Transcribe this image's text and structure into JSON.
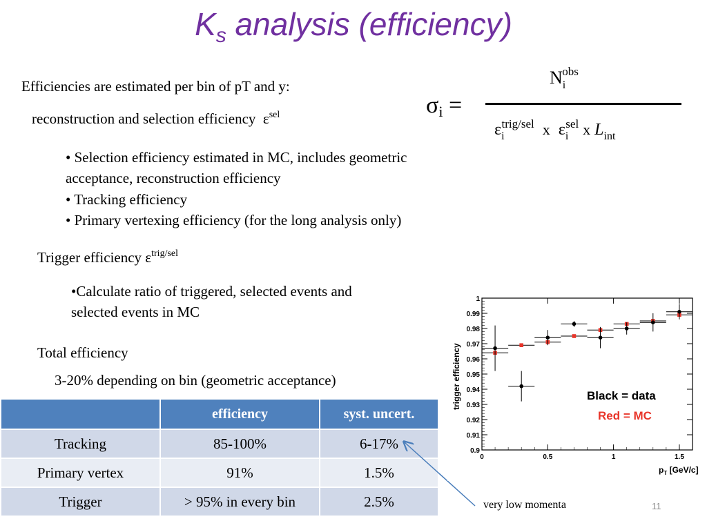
{
  "slide": {
    "title_main": "K",
    "title_sub": "s",
    "title_rest": " analysis (efficiency)",
    "page_number": "11"
  },
  "text": {
    "intro": "Efficiencies are estimated per bin of pT and y:",
    "reco_label": "reconstruction and selection efficiency",
    "reco_symbol": "ε",
    "reco_sup": "sel",
    "bullets_reco": [
      "• Selection efficiency estimated in MC, includes geometric",
      "acceptance, reconstruction efficiency",
      "• Tracking efficiency",
      "• Primary vertexing efficiency (for the long analysis only)"
    ],
    "trigger_label": "Trigger efficiency",
    "trigger_symbol": "ε",
    "trigger_sup": "trig/sel",
    "bullets_trigger": [
      "•Calculate ratio of triggered, selected events and",
      "selected events in MC"
    ],
    "total_label": "Total efficiency",
    "total_detail": "3-20% depending on bin (geometric acceptance)",
    "annotation": "very low momenta"
  },
  "formula": {
    "lhs": "σ",
    "lhs_sub": "i",
    "equals": "=",
    "num": "N",
    "num_sub": "i",
    "num_sup": "obs",
    "eps1": "ε",
    "eps1_sub": "i",
    "eps1_sup": "trig/sel",
    "times1": "x",
    "eps2": "ε",
    "eps2_sub": "i",
    "eps2_sup": "sel",
    "times2": "x",
    "lum": "L",
    "lum_sub": "int"
  },
  "table": {
    "headers": [
      "",
      "efficiency",
      "syst. uncert."
    ],
    "rows": [
      [
        "Tracking",
        "85-100%",
        "6-17%"
      ],
      [
        "Primary vertex",
        "91%",
        "1.5%"
      ],
      [
        "Trigger",
        "> 95% in every bin",
        "2.5%"
      ]
    ]
  },
  "chart_data": {
    "type": "scatter",
    "title": "",
    "xlabel": "p_T [GeV/c]",
    "ylabel": "trigger efficiency",
    "xlim": [
      0,
      1.6
    ],
    "ylim": [
      0.9,
      1.0
    ],
    "x_ticks": [
      "0",
      "0.5",
      "1",
      "1.5"
    ],
    "y_ticks": [
      "0.9",
      "0.91",
      "0.92",
      "0.93",
      "0.94",
      "0.95",
      "0.96",
      "0.97",
      "0.98",
      "0.99",
      "1"
    ],
    "legend": [
      "Black = data",
      "Red = MC"
    ],
    "series": [
      {
        "name": "Black = data",
        "color": "#000000",
        "points": [
          {
            "x": 0.1,
            "y": 0.967,
            "ylo": 0.952,
            "yhi": 0.982,
            "xerr": 0.1
          },
          {
            "x": 0.3,
            "y": 0.942,
            "ylo": 0.932,
            "yhi": 0.952,
            "xerr": 0.1
          },
          {
            "x": 0.5,
            "y": 0.974,
            "ylo": 0.969,
            "yhi": 0.979,
            "xerr": 0.1
          },
          {
            "x": 0.7,
            "y": 0.983,
            "ylo": 0.981,
            "yhi": 0.985,
            "xerr": 0.1
          },
          {
            "x": 0.9,
            "y": 0.974,
            "ylo": 0.967,
            "yhi": 0.981,
            "xerr": 0.1
          },
          {
            "x": 1.1,
            "y": 0.98,
            "ylo": 0.976,
            "yhi": 0.984,
            "xerr": 0.1
          },
          {
            "x": 1.3,
            "y": 0.984,
            "ylo": 0.978,
            "yhi": 0.99,
            "xerr": 0.1
          },
          {
            "x": 1.5,
            "y": 0.991,
            "ylo": 0.986,
            "yhi": 0.996,
            "xerr": 0.1
          }
        ]
      },
      {
        "name": "Red = MC",
        "color": "#e8352a",
        "points": [
          {
            "x": 0.1,
            "y": 0.964,
            "xerr": 0.1
          },
          {
            "x": 0.3,
            "y": 0.969,
            "xerr": 0.1
          },
          {
            "x": 0.5,
            "y": 0.971,
            "xerr": 0.1
          },
          {
            "x": 0.7,
            "y": 0.975,
            "xerr": 0.1
          },
          {
            "x": 0.9,
            "y": 0.979,
            "xerr": 0.1
          },
          {
            "x": 1.1,
            "y": 0.983,
            "xerr": 0.1
          },
          {
            "x": 1.3,
            "y": 0.985,
            "xerr": 0.1
          },
          {
            "x": 1.5,
            "y": 0.989,
            "xerr": 0.1
          }
        ]
      }
    ]
  },
  "colors": {
    "title": "#7030a0",
    "table_header": "#4f81bd",
    "table_row_dark": "#d0d8e8",
    "table_row_light": "#e9edf4",
    "arrow": "#4a7ebb"
  }
}
